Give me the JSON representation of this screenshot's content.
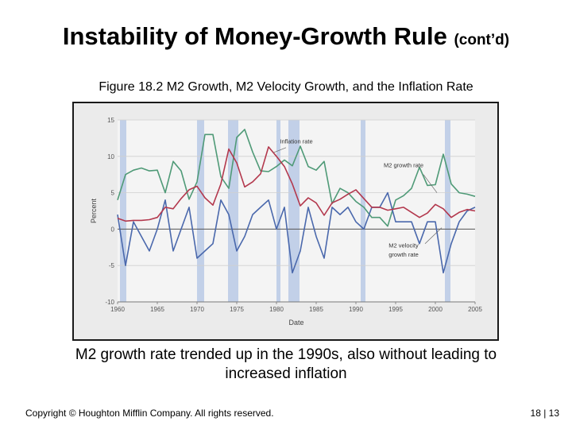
{
  "slide": {
    "title_main": "Instability of Money-Growth Rule",
    "title_suffix": "(cont’d)",
    "figure_caption": "Figure 18.2 M2 Growth, M2 Velocity Growth, and the Inflation Rate",
    "note_line1": "M2 growth rate trended up in the 1990s, also without leading to",
    "note_line2": "increased inflation",
    "copyright": "Copyright © Houghton Mifflin Company.  All rights reserved.",
    "page": "18 | 13"
  },
  "colors": {
    "inflation": "#b3384d",
    "m2_growth": "#4f9a77",
    "m2_velocity": "#4a68ac",
    "recession": "#c2d0e8",
    "background": "#ebebeb"
  },
  "chart_data": {
    "type": "line",
    "title": "",
    "xlabel": "Date",
    "ylabel": "Percent",
    "xlim": [
      1960,
      2005
    ],
    "ylim": [
      -10,
      15
    ],
    "x_ticks": [
      1960,
      1965,
      1970,
      1975,
      1980,
      1985,
      1990,
      1995,
      2000,
      2005
    ],
    "y_ticks": [
      15,
      10,
      5,
      0,
      -5,
      -10
    ],
    "recessions": [
      [
        1960.3,
        1961.1
      ],
      [
        1970.0,
        1970.9
      ],
      [
        1973.9,
        1975.2
      ],
      [
        1980.0,
        1980.5
      ],
      [
        1981.5,
        1982.9
      ],
      [
        1990.6,
        1991.2
      ],
      [
        2001.2,
        2001.9
      ]
    ],
    "annotations": [
      {
        "text": "Inflation rate",
        "series": "inflation",
        "at": [
          1982.5,
          11.8
        ]
      },
      {
        "text": "M2 growth rate",
        "series": "m2_growth",
        "at": [
          1996.0,
          8.5
        ]
      },
      {
        "text": "M2 velocity",
        "series": "m2_velocity",
        "at": [
          1996.0,
          -2.5
        ]
      },
      {
        "text": "growth rate",
        "series": "m2_velocity",
        "at": [
          1996.0,
          -3.8
        ]
      }
    ],
    "series": [
      {
        "name": "Inflation rate",
        "key": "inflation",
        "x": [
          1960,
          1961,
          1962,
          1963,
          1964,
          1965,
          1966,
          1967,
          1968,
          1969,
          1970,
          1971,
          1972,
          1973,
          1974,
          1975,
          1976,
          1977,
          1978,
          1979,
          1980,
          1981,
          1982,
          1983,
          1984,
          1985,
          1986,
          1987,
          1988,
          1989,
          1990,
          1991,
          1992,
          1993,
          1994,
          1995,
          1996,
          1997,
          1998,
          1999,
          2000,
          2001,
          2002,
          2003,
          2004,
          2005
        ],
        "y": [
          1.5,
          1.1,
          1.2,
          1.2,
          1.3,
          1.6,
          3.0,
          2.8,
          4.2,
          5.4,
          5.9,
          4.3,
          3.3,
          6.2,
          11.0,
          9.1,
          5.8,
          6.5,
          7.6,
          11.3,
          10.0,
          8.6,
          6.2,
          3.2,
          4.3,
          3.6,
          1.9,
          3.6,
          4.1,
          4.8,
          5.4,
          4.2,
          3.0,
          3.0,
          2.6,
          2.8,
          3.0,
          2.3,
          1.6,
          2.2,
          3.4,
          2.8,
          1.6,
          2.3,
          2.7,
          2.5
        ]
      },
      {
        "name": "M2 growth rate",
        "key": "m2_growth",
        "x": [
          1960,
          1961,
          1962,
          1963,
          1964,
          1965,
          1966,
          1967,
          1968,
          1969,
          1970,
          1971,
          1972,
          1973,
          1974,
          1975,
          1976,
          1977,
          1978,
          1979,
          1980,
          1981,
          1982,
          1983,
          1984,
          1985,
          1986,
          1987,
          1988,
          1989,
          1990,
          1991,
          1992,
          1993,
          1994,
          1995,
          1996,
          1997,
          1998,
          1999,
          2000,
          2001,
          2002,
          2003,
          2004,
          2005
        ],
        "y": [
          4.0,
          7.5,
          8.1,
          8.4,
          8.0,
          8.1,
          5.0,
          9.3,
          8.0,
          4.1,
          6.5,
          13.0,
          13.0,
          7.2,
          5.6,
          12.6,
          13.7,
          10.6,
          8.0,
          7.9,
          8.6,
          9.5,
          8.7,
          11.4,
          8.6,
          8.1,
          9.3,
          3.5,
          5.6,
          5.0,
          3.8,
          3.0,
          1.6,
          1.6,
          0.4,
          4.0,
          4.6,
          5.6,
          8.5,
          6.0,
          6.1,
          10.3,
          6.2,
          5.0,
          4.8,
          4.5
        ]
      },
      {
        "name": "M2 velocity growth rate",
        "key": "m2_velocity",
        "x": [
          1960,
          1961,
          1962,
          1963,
          1964,
          1965,
          1966,
          1967,
          1968,
          1969,
          1970,
          1971,
          1972,
          1973,
          1974,
          1975,
          1976,
          1977,
          1978,
          1979,
          1980,
          1981,
          1982,
          1983,
          1984,
          1985,
          1986,
          1987,
          1988,
          1989,
          1990,
          1991,
          1992,
          1993,
          1994,
          1995,
          1996,
          1997,
          1998,
          1999,
          2000,
          2001,
          2002,
          2003,
          2004,
          2005
        ],
        "y": [
          2.0,
          -5.0,
          1.0,
          -1.0,
          -3.0,
          0.0,
          4.0,
          -3.0,
          0.0,
          3.0,
          -4.0,
          -3.0,
          -2.0,
          4.0,
          2.0,
          -3.0,
          -1.0,
          2.0,
          3.0,
          4.0,
          0.0,
          3.0,
          -6.0,
          -3.0,
          3.0,
          -1.0,
          -4.0,
          3.0,
          2.0,
          3.0,
          1.0,
          0.0,
          3.0,
          3.0,
          5.0,
          1.0,
          1.0,
          1.0,
          -2.0,
          1.0,
          1.0,
          -6.0,
          -2.0,
          1.0,
          2.5,
          3.0
        ]
      }
    ]
  }
}
